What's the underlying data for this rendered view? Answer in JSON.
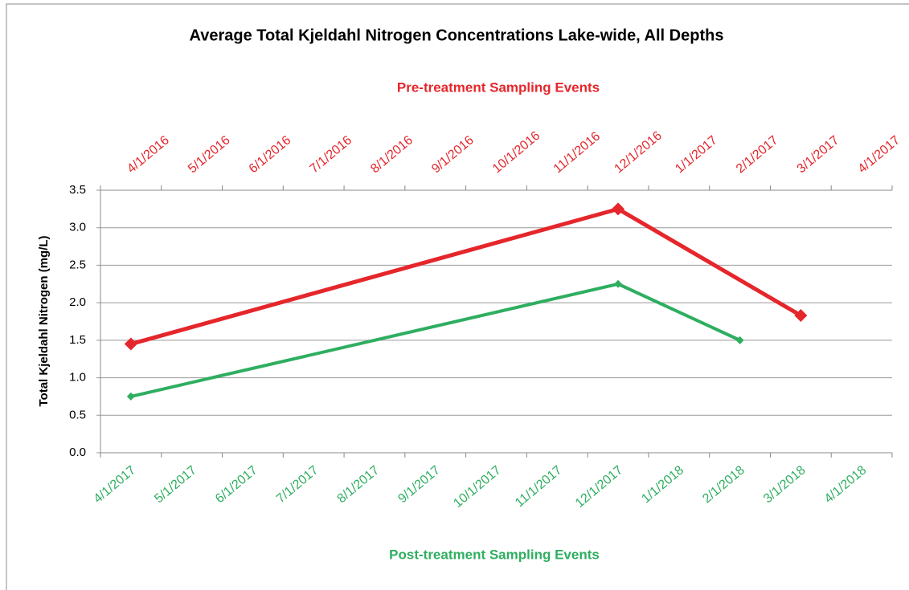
{
  "chart_data": {
    "type": "line",
    "title": "Average Total Kjeldahl Nitrogen Concentrations Lake-wide, All Depths",
    "x2_label": "Pre-treatment Sampling Events",
    "xlabel": "Post-treatment Sampling Events",
    "ylabel": "Total Kjeldahl Nitrogen (mg/L)",
    "x2_categories": [
      "4/1/2016",
      "5/1/2016",
      "6/1/2016",
      "7/1/2016",
      "8/1/2016",
      "9/1/2016",
      "10/1/2016",
      "11/1/2016",
      "12/1/2016",
      "1/1/2017",
      "2/1/2017",
      "3/1/2017",
      "4/1/2017"
    ],
    "categories": [
      "4/1/2017",
      "5/1/2017",
      "6/1/2017",
      "7/1/2017",
      "8/1/2017",
      "9/1/2017",
      "10/1/2017",
      "11/1/2017",
      "12/1/2017",
      "1/1/2018",
      "2/1/2018",
      "3/1/2018",
      "4/1/2018"
    ],
    "x2_color": "#e5262b",
    "x_color": "#2eae60",
    "series": [
      {
        "color": "#e5262b",
        "axis": "x2",
        "x": [
          "4/1/2016",
          "12/1/2016",
          "3/1/2017"
        ],
        "values": [
          1.45,
          3.25,
          1.83
        ]
      },
      {
        "color": "#2eae60",
        "axis": "x",
        "x": [
          "4/1/2017",
          "12/1/2017",
          "2/1/2018"
        ],
        "values": [
          0.75,
          2.25,
          1.5
        ]
      }
    ],
    "ylim": [
      0,
      3.5
    ],
    "yticks": [
      {
        "value": 0,
        "label": "0.0"
      },
      0.5,
      {
        "value": 1,
        "label": "1.0"
      },
      1.5,
      {
        "value": 2,
        "label": "2.0"
      },
      2.5,
      {
        "value": 3,
        "label": "3.0"
      },
      3.5
    ],
    "grid": true
  }
}
